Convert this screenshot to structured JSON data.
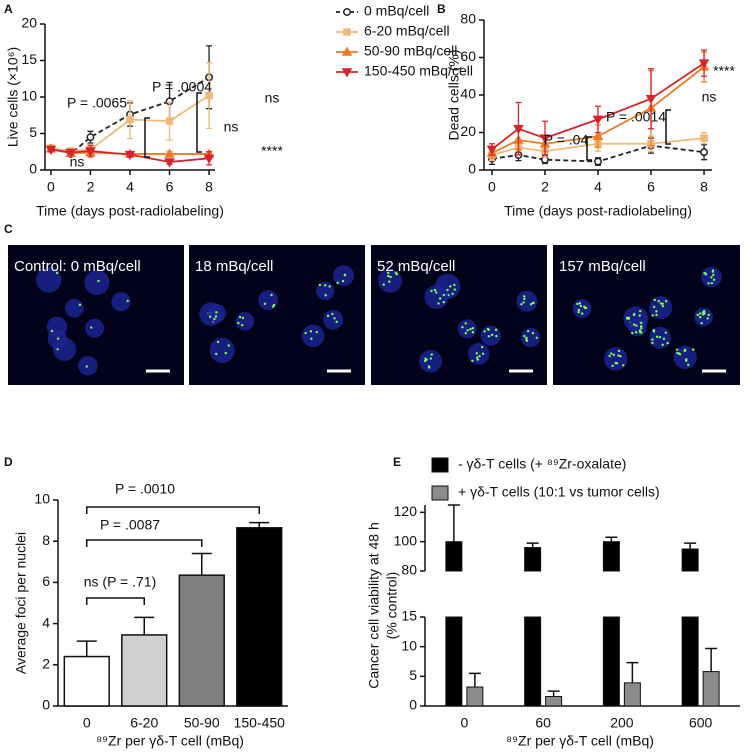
{
  "chart_data": [
    {
      "type": "line",
      "label": "A",
      "ylabel": "Live cells (×10⁶)",
      "xlabel": "Time (days post-radiolabeling)",
      "x": [
        0,
        1,
        2,
        4,
        6,
        8
      ],
      "xlim": [
        -0.3,
        8.3
      ],
      "xticks": [
        0,
        2,
        4,
        6,
        8
      ],
      "ylim": [
        0,
        20
      ],
      "yticks": [
        0,
        5,
        10,
        15,
        20
      ],
      "legend": true,
      "series": [
        {
          "name": "0 mBq/cell",
          "color": "#222222",
          "dash": true,
          "marker": "circle",
          "values": [
            3.0,
            2.2,
            4.5,
            7.6,
            9.4,
            12.7
          ],
          "errors": [
            0.4,
            0.3,
            0.8,
            1.6,
            2.6,
            4.3
          ]
        },
        {
          "name": "6-20 mBq/cell",
          "color": "#f0b97a",
          "dash": false,
          "marker": "square",
          "values": [
            3.0,
            2.6,
            2.8,
            6.9,
            6.7,
            10.2
          ],
          "errors": [
            0.3,
            0.3,
            0.5,
            2.6,
            2.6,
            4.5
          ]
        },
        {
          "name": "50-90 mBq/cell",
          "color": "#ea7d24",
          "dash": false,
          "marker": "triangle-up",
          "values": [
            2.9,
            2.3,
            2.4,
            2.2,
            2.2,
            2.2
          ],
          "errors": [
            0.3,
            0.3,
            0.3,
            0.3,
            0.3,
            0.3
          ]
        },
        {
          "name": "150-450 mBq/cell",
          "color": "#d9232a",
          "dash": false,
          "marker": "triangle-down",
          "values": [
            2.8,
            2.4,
            2.6,
            2.1,
            1.1,
            1.6
          ],
          "errors": [
            0.3,
            0.3,
            0.8,
            0.3,
            0.3,
            0.9
          ]
        }
      ],
      "annotations": [
        "P = .0065",
        "P = .0004",
        "ns",
        "ns",
        "ns",
        "****"
      ]
    },
    {
      "type": "line",
      "label": "B",
      "ylabel": "Dead cells (%)",
      "xlabel": "Time (days post-radiolabeling)",
      "x": [
        0,
        1,
        2,
        4,
        6,
        8
      ],
      "xlim": [
        -0.3,
        8.3
      ],
      "xticks": [
        0,
        2,
        4,
        6,
        8
      ],
      "ylim": [
        0,
        80
      ],
      "yticks": [
        0,
        20,
        40,
        60,
        80
      ],
      "legend": false,
      "series": [
        {
          "color": "#222222",
          "dash": true,
          "marker": "circle",
          "values": [
            6,
            8,
            5.5,
            4.5,
            13,
            9.5
          ],
          "errors": [
            3,
            3,
            2,
            2,
            4,
            4
          ]
        },
        {
          "color": "#f0b97a",
          "dash": false,
          "marker": "square",
          "values": [
            8,
            12,
            10,
            14,
            14,
            17
          ],
          "errors": [
            3,
            4,
            3,
            4,
            4,
            3
          ]
        },
        {
          "color": "#ea7d24",
          "dash": false,
          "marker": "triangle-up",
          "values": [
            9,
            16,
            14,
            18,
            33,
            55
          ],
          "errors": [
            3,
            5,
            4,
            6,
            20,
            8
          ]
        },
        {
          "color": "#d9232a",
          "dash": false,
          "marker": "triangle-down",
          "values": [
            11,
            22,
            17,
            27,
            38,
            57
          ],
          "errors": [
            3,
            14,
            9,
            7,
            16,
            7
          ]
        }
      ],
      "annotations": [
        "P = .04",
        "P = .0014",
        "ns",
        "****"
      ]
    },
    {
      "type": "bar",
      "label": "D",
      "ylabel": "Average foci per nuclei",
      "xlabel": "⁸⁹Zr per γδ-T cell (mBq)",
      "categories": [
        "0",
        "6-20",
        "50-90",
        "150-450"
      ],
      "values": [
        2.4,
        3.45,
        6.35,
        8.65
      ],
      "errors": [
        0.75,
        0.85,
        1.05,
        0.25
      ],
      "colors": [
        "#ffffff",
        "#d0d0d0",
        "#7f7f7f",
        "#000000"
      ],
      "ylim": [
        0,
        10
      ],
      "yticks": [
        0,
        2,
        4,
        6,
        8,
        10
      ],
      "annotations": [
        "ns (P = .71)",
        "P = .0087",
        "P = .0010"
      ]
    },
    {
      "type": "broken-bar",
      "label": "E",
      "ylabel": [
        "Cancer cell viability at 48 h",
        "(% control)"
      ],
      "xlabel": "⁸⁹Zr per γδ-T cell (mBq)",
      "categories": [
        "0",
        "60",
        "200",
        "600"
      ],
      "ylim": [
        0,
        15
      ],
      "yticks": [
        0,
        5,
        10,
        15
      ],
      "ylim_upper": [
        80,
        125
      ],
      "yticks_upper": [
        80,
        100,
        120
      ],
      "series": [
        {
          "name": "- γδ-T cells (+ ⁸⁹Zr-oxalate)",
          "color": "#000000",
          "values": [
            100,
            96,
            100,
            95
          ],
          "errors": [
            25,
            3,
            3,
            4
          ]
        },
        {
          "name": "+ γδ-T cells (10:1 vs tumor cells)",
          "color": "#8c8c8c",
          "values": [
            3.2,
            1.6,
            3.9,
            5.8
          ],
          "errors": [
            2.3,
            0.9,
            3.4,
            3.9
          ]
        }
      ]
    }
  ],
  "images": {
    "label": "C",
    "panels": [
      "Control: 0 mBq/cell",
      "18 mBq/cell",
      "52 mBq/cell",
      "157 mBq/cell"
    ]
  }
}
